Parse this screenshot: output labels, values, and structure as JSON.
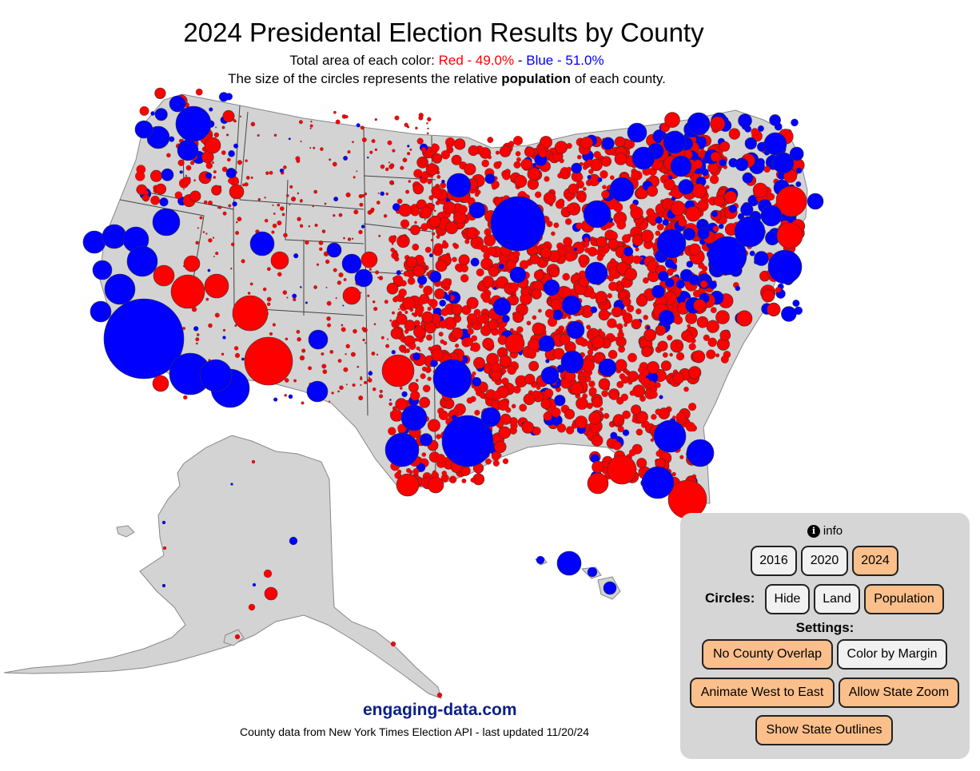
{
  "header": {
    "title": "2024 Presidental Election Results by County",
    "subtitle_prefix": "Total area of each color:",
    "red_text": "Red - 49.0%",
    "sep": "-",
    "blue_text": "Blue - 51.0%",
    "line2_prefix": "The size of the circles represents the relative",
    "line2_bold": "population",
    "line2_suffix": "of each county."
  },
  "colors": {
    "red": "#ff0000",
    "blue": "#0000ff",
    "land": "#d3d3d3",
    "active_button": "#fbbf8b"
  },
  "summary": {
    "red_area_percent": 49.0,
    "blue_area_percent": 51.0
  },
  "controls": {
    "info_label": "info",
    "years": [
      "2016",
      "2020",
      "2024"
    ],
    "selected_year": "2024",
    "circles_label": "Circles:",
    "circle_options": [
      "Hide",
      "Land",
      "Population"
    ],
    "selected_circle": "Population",
    "settings_label": "Settings:",
    "settings": {
      "no_overlap": "No County Overlap",
      "color_margin": "Color by Margin",
      "animate": "Animate West to East",
      "state_zoom": "Allow State Zoom",
      "outlines": "Show State Outlines"
    }
  },
  "footer": {
    "site": "engaging-data.com",
    "credit": "County data from New York Times Election API - last updated 11/20/24"
  }
}
